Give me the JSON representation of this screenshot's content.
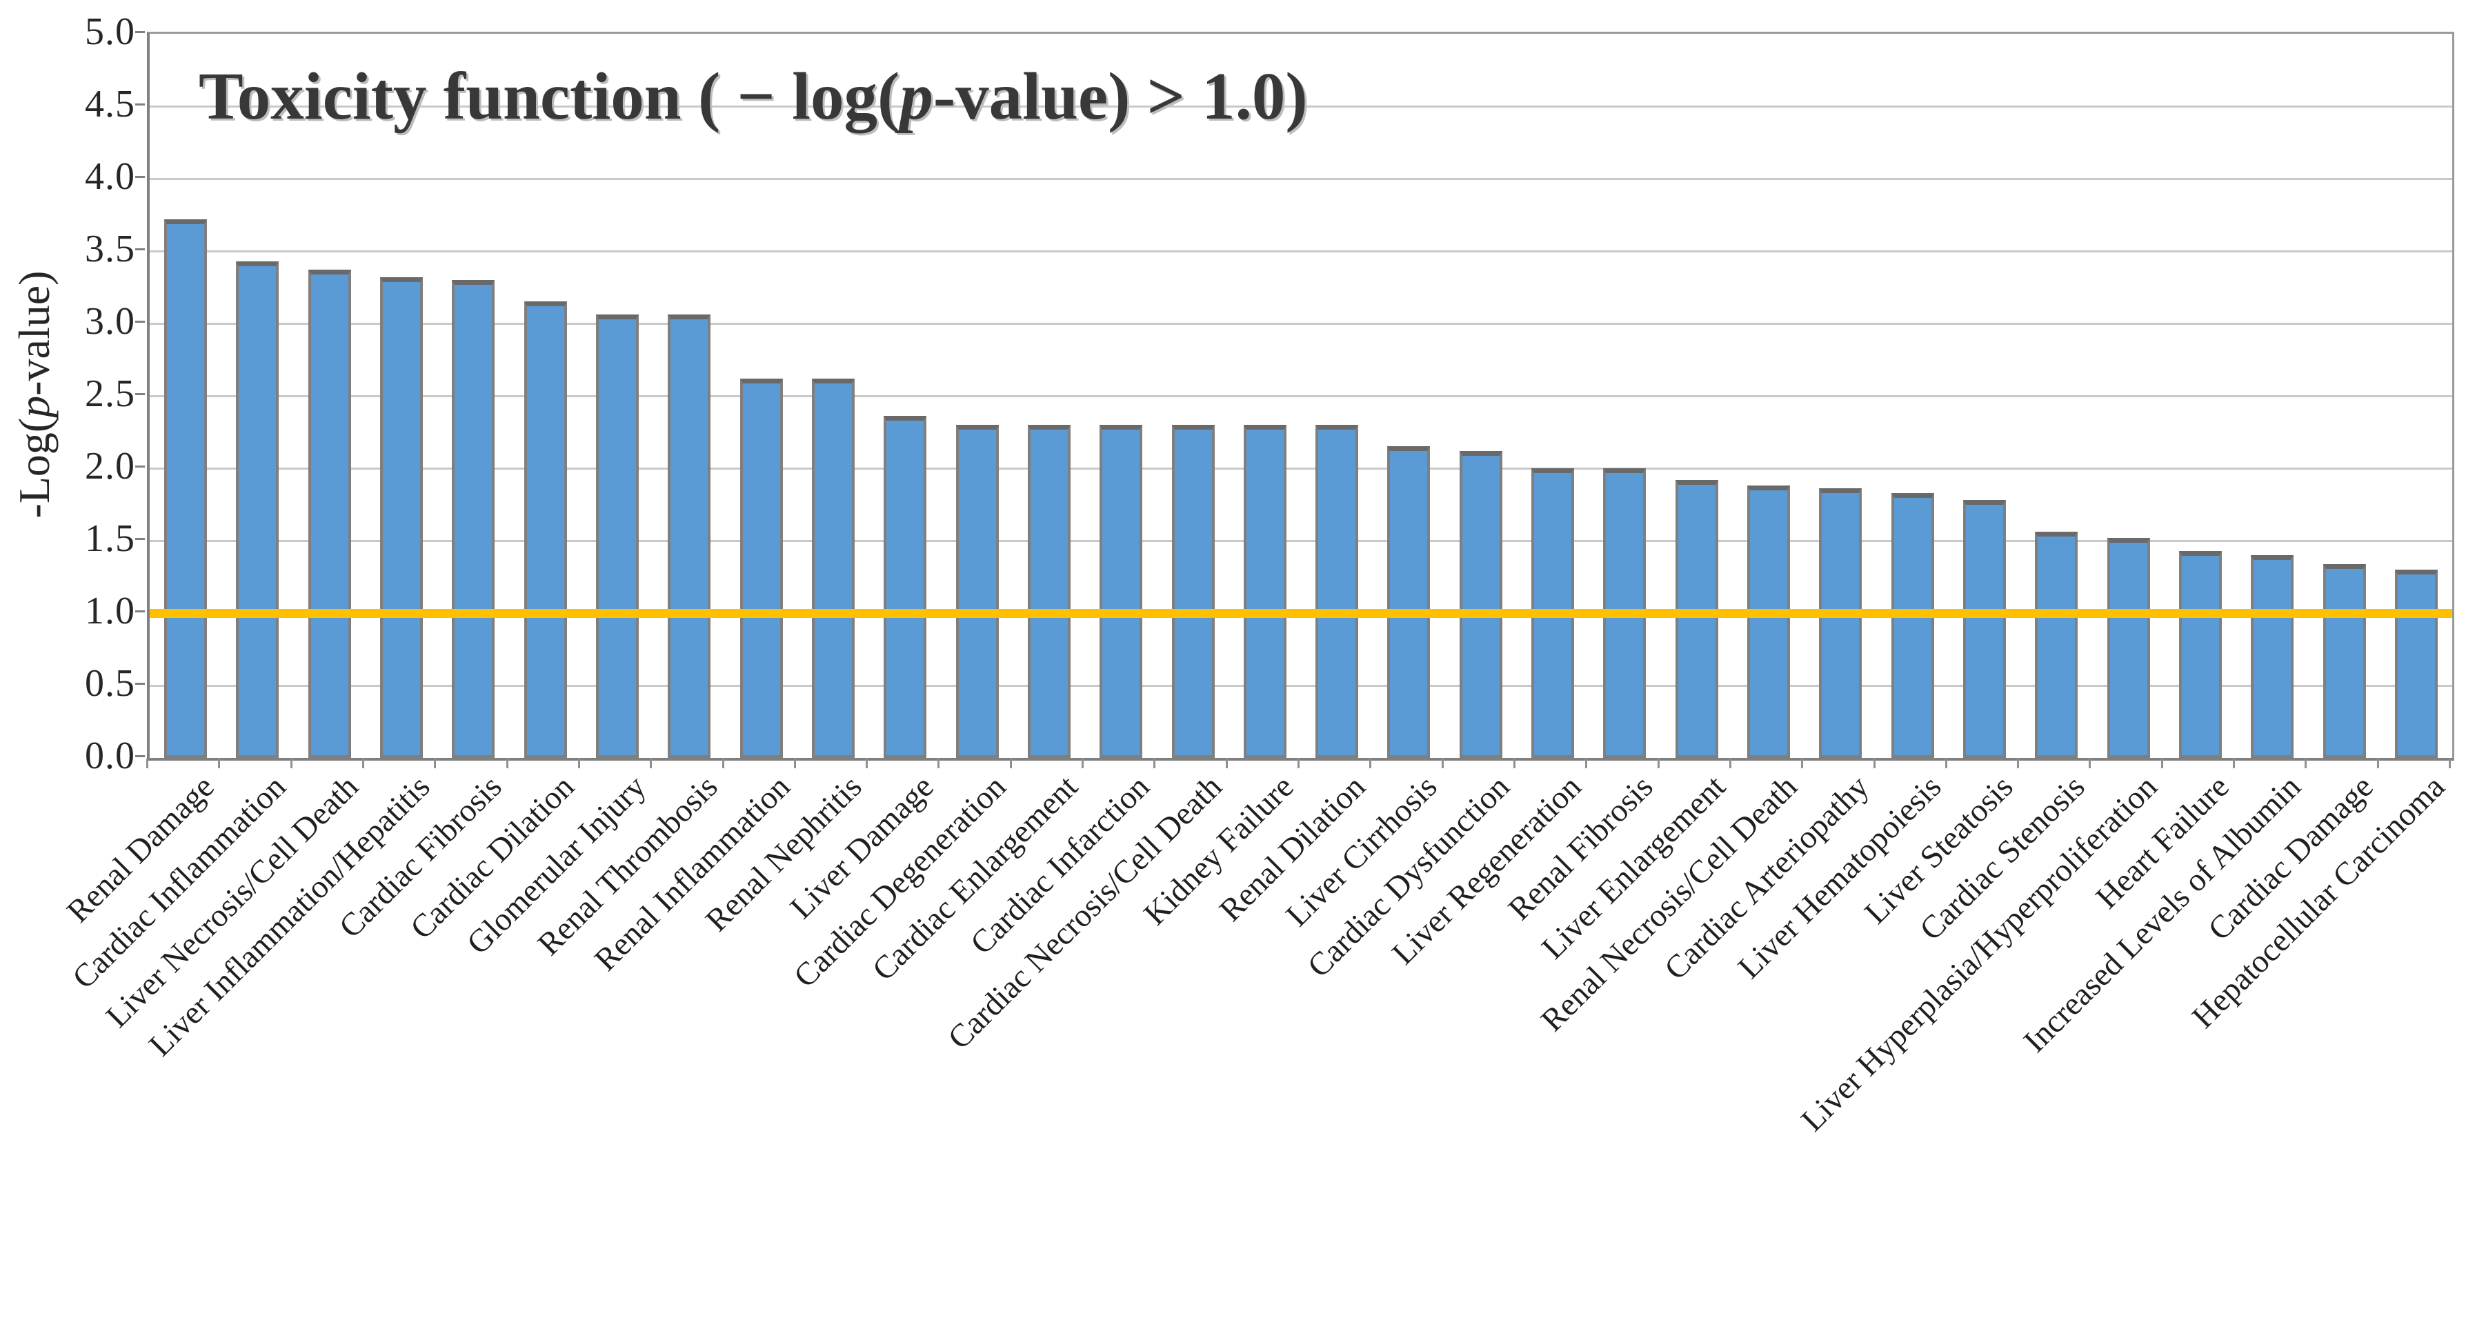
{
  "chart_data": {
    "type": "bar",
    "title": "Toxicity function ( − log(p-value) > 1.0)",
    "ylabel": "-Log(p-value)",
    "xlabel": "",
    "ylim": [
      0,
      5
    ],
    "ytick_step": 0.5,
    "yticks": [
      "5.0",
      "4.5",
      "4.0",
      "3.5",
      "3.0",
      "2.5",
      "2.0",
      "1.5",
      "1.0",
      "0.5",
      "0.0"
    ],
    "grid": true,
    "legend_position": "none",
    "threshold_line": {
      "value": 1.0,
      "color": "#FFC000"
    },
    "bar_color": "#5B9BD5",
    "bar_border_color": "#7f7f7f",
    "gridline_color": "#c9c9c9",
    "categories": [
      "Renal Damage",
      "Cardiac Inflammation",
      "Liver Necrosis/Cell Death",
      "Liver Inflammation/Hepatitis",
      "Cardiac Fibrosis",
      "Cardiac Dilation",
      "Glomerular Injury",
      "Renal Thrombosis",
      "Renal Inflammation",
      "Renal Nephritis",
      "Liver Damage",
      "Cardiac Degeneration",
      "Cardiac Enlargement",
      "Cardiac Infarction",
      "Cardiac Necrosis/Cell Death",
      "Kidney Failure",
      "Renal Dilation",
      "Liver Cirrhosis",
      "Cardiac Dysfunction",
      "Liver Regeneration",
      "Renal Fibrosis",
      "Liver Enlargement",
      "Renal Necrosis/Cell Death",
      "Cardiac Arteriopathy",
      "Liver Hematopoiesis",
      "Liver Steatosis",
      "Cardiac Stenosis",
      "Liver Hyperplasia/Hyperproliferation",
      "Heart Failure",
      "Increased Levels of Albumin",
      "Cardiac Damage",
      "Hepatocellular Carcinoma"
    ],
    "values": [
      3.72,
      3.43,
      3.37,
      3.32,
      3.3,
      3.15,
      3.06,
      3.06,
      2.62,
      2.62,
      2.36,
      2.3,
      2.3,
      2.3,
      2.3,
      2.3,
      2.3,
      2.15,
      2.12,
      2.0,
      2.0,
      1.92,
      1.88,
      1.86,
      1.83,
      1.78,
      1.56,
      1.52,
      1.43,
      1.4,
      1.34,
      1.3
    ]
  }
}
